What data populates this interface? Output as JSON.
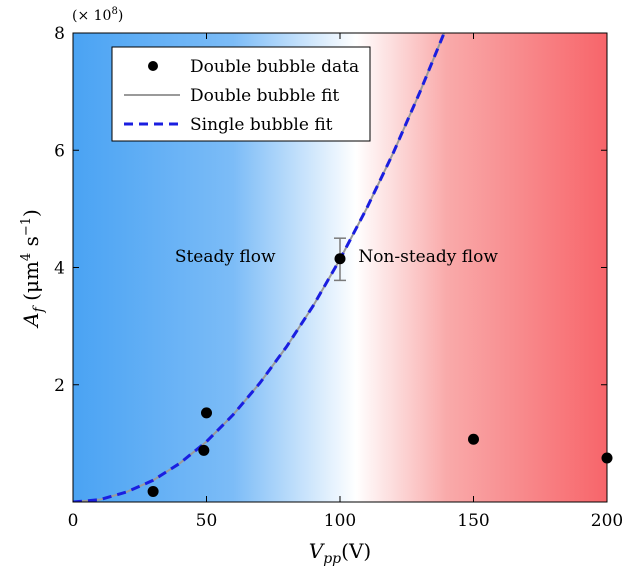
{
  "chart_data": {
    "type": "scatter",
    "multiplier_label": "(× 10",
    "multiplier_exp": "8",
    "multiplier_close": ")",
    "xlabel": {
      "main": "V",
      "sub": "pp",
      "unit": "(V)"
    },
    "ylabel": {
      "main": "A",
      "sub": "f",
      "unit_open": " (μm",
      "unit_exp1": "4",
      "unit_mid": " s",
      "unit_exp2": "−1",
      "unit_close": ")"
    },
    "xlim": [
      0,
      200
    ],
    "ylim": [
      0,
      8
    ],
    "x_ticks": [
      0,
      50,
      100,
      150,
      200
    ],
    "y_ticks": [
      2,
      4,
      6,
      8
    ],
    "grid": false,
    "background_gradient": {
      "left_color": "#4aa3f3",
      "middle_color": "#ffffff",
      "right_color": "#f7656a",
      "white_at_x": 106
    },
    "region_labels": [
      {
        "text": "Steady flow",
        "x": 57,
        "y": 4.2
      },
      {
        "text": "Non-steady flow",
        "x": 133,
        "y": 4.2
      }
    ],
    "legend": {
      "placement": "top-left",
      "entries": [
        {
          "label": "Double bubble data",
          "style": "marker",
          "color": "#000000"
        },
        {
          "label": "Double bubble fit",
          "style": "solid",
          "color": "#9a9a9a"
        },
        {
          "label": "Single bubble fit",
          "style": "dashed",
          "color": "#1a1ee0"
        }
      ]
    },
    "series": [
      {
        "name": "Double bubble data",
        "kind": "scatter",
        "color": "#000000",
        "points": [
          {
            "x": 30,
            "y": 0.18
          },
          {
            "x": 49,
            "y": 0.88
          },
          {
            "x": 50,
            "y": 1.52
          },
          {
            "x": 100,
            "y": 4.15
          },
          {
            "x": 150,
            "y": 1.07
          },
          {
            "x": 200,
            "y": 0.75
          }
        ],
        "error_bars": [
          {
            "x": 100,
            "low": 3.78,
            "high": 4.5
          }
        ]
      },
      {
        "name": "Double bubble fit",
        "kind": "line",
        "color": "#9a9a9a",
        "x": [
          0,
          10,
          20,
          30,
          40,
          50,
          60,
          70,
          80,
          90,
          100,
          110,
          120,
          130,
          139
        ],
        "y": [
          0,
          0.04,
          0.17,
          0.37,
          0.66,
          1.03,
          1.49,
          2.03,
          2.65,
          3.35,
          4.14,
          5.01,
          5.96,
          7.0,
          8.0
        ]
      },
      {
        "name": "Single bubble fit",
        "kind": "line",
        "color": "#1a1ee0",
        "dashed": true,
        "x": [
          0,
          10,
          20,
          30,
          40,
          50,
          60,
          70,
          80,
          90,
          100,
          110,
          120,
          130,
          139
        ],
        "y": [
          0,
          0.04,
          0.17,
          0.37,
          0.66,
          1.03,
          1.49,
          2.03,
          2.65,
          3.35,
          4.14,
          5.01,
          5.96,
          7.0,
          8.0
        ]
      }
    ]
  }
}
